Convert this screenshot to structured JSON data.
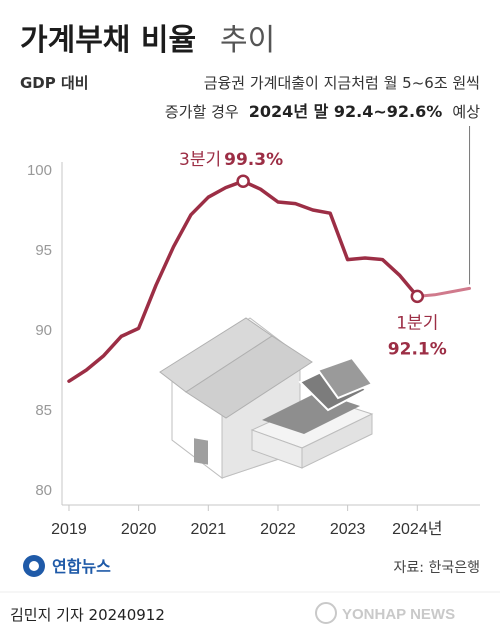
{
  "header": {
    "title": "가계부채 비율",
    "title_suffix": "추이",
    "basis": "GDP 대비"
  },
  "note": {
    "line1": "금융권 가계대출이 지금처럼 월 5~6조 원씩",
    "line2_pre": "증가할 경우",
    "line2_bold": "2024년 말 92.4~92.6%",
    "line2_post": "예상"
  },
  "chart_data": {
    "type": "line",
    "x_unit": "quarter",
    "xlim": [
      2018.9,
      2024.9
    ],
    "ylim": [
      80,
      100
    ],
    "yticks": [
      "100",
      "95",
      "90",
      "85",
      "80"
    ],
    "xticks": [
      "2019",
      "2020",
      "2021",
      "2022",
      "2023",
      "2024년"
    ],
    "grid": false,
    "series": [
      {
        "points": [
          {
            "x": 2019.0,
            "y": 86.8
          },
          {
            "x": 2019.25,
            "y": 87.5
          },
          {
            "x": 2019.5,
            "y": 88.4
          },
          {
            "x": 2019.75,
            "y": 89.6
          },
          {
            "x": 2020.0,
            "y": 90.1
          },
          {
            "x": 2020.25,
            "y": 92.8
          },
          {
            "x": 2020.5,
            "y": 95.2
          },
          {
            "x": 2020.75,
            "y": 97.2
          },
          {
            "x": 2021.0,
            "y": 98.3
          },
          {
            "x": 2021.25,
            "y": 98.9
          },
          {
            "x": 2021.5,
            "y": 99.3
          },
          {
            "x": 2021.75,
            "y": 98.8
          },
          {
            "x": 2022.0,
            "y": 98.0
          },
          {
            "x": 2022.25,
            "y": 97.9
          },
          {
            "x": 2022.5,
            "y": 97.5
          },
          {
            "x": 2022.75,
            "y": 97.3
          },
          {
            "x": 2023.0,
            "y": 94.4
          },
          {
            "x": 2023.25,
            "y": 94.5
          },
          {
            "x": 2023.5,
            "y": 94.4
          },
          {
            "x": 2023.75,
            "y": 93.4
          },
          {
            "x": 2024.0,
            "y": 92.1
          }
        ]
      },
      {
        "points": [
          {
            "x": 2024.0,
            "y": 92.1
          },
          {
            "x": 2024.25,
            "y": 92.2
          },
          {
            "x": 2024.5,
            "y": 92.4
          },
          {
            "x": 2024.75,
            "y": 92.6
          }
        ]
      }
    ],
    "annotations": [
      {
        "label": "3분기",
        "value": "99.3%",
        "x": 2021.5,
        "y": 99.3
      },
      {
        "label": "1분기",
        "value": "92.1%",
        "x": 2024.0,
        "y": 92.1
      }
    ],
    "colors": {
      "line": "#9c2e45",
      "projection": "#d07a8c",
      "axis": "#c7c7c7"
    }
  },
  "footer": {
    "source": "자료: 한국은행",
    "credit": "김민지 기자  20240912",
    "logo": "연합뉴스",
    "watermark": "YONHAP NEWS"
  }
}
